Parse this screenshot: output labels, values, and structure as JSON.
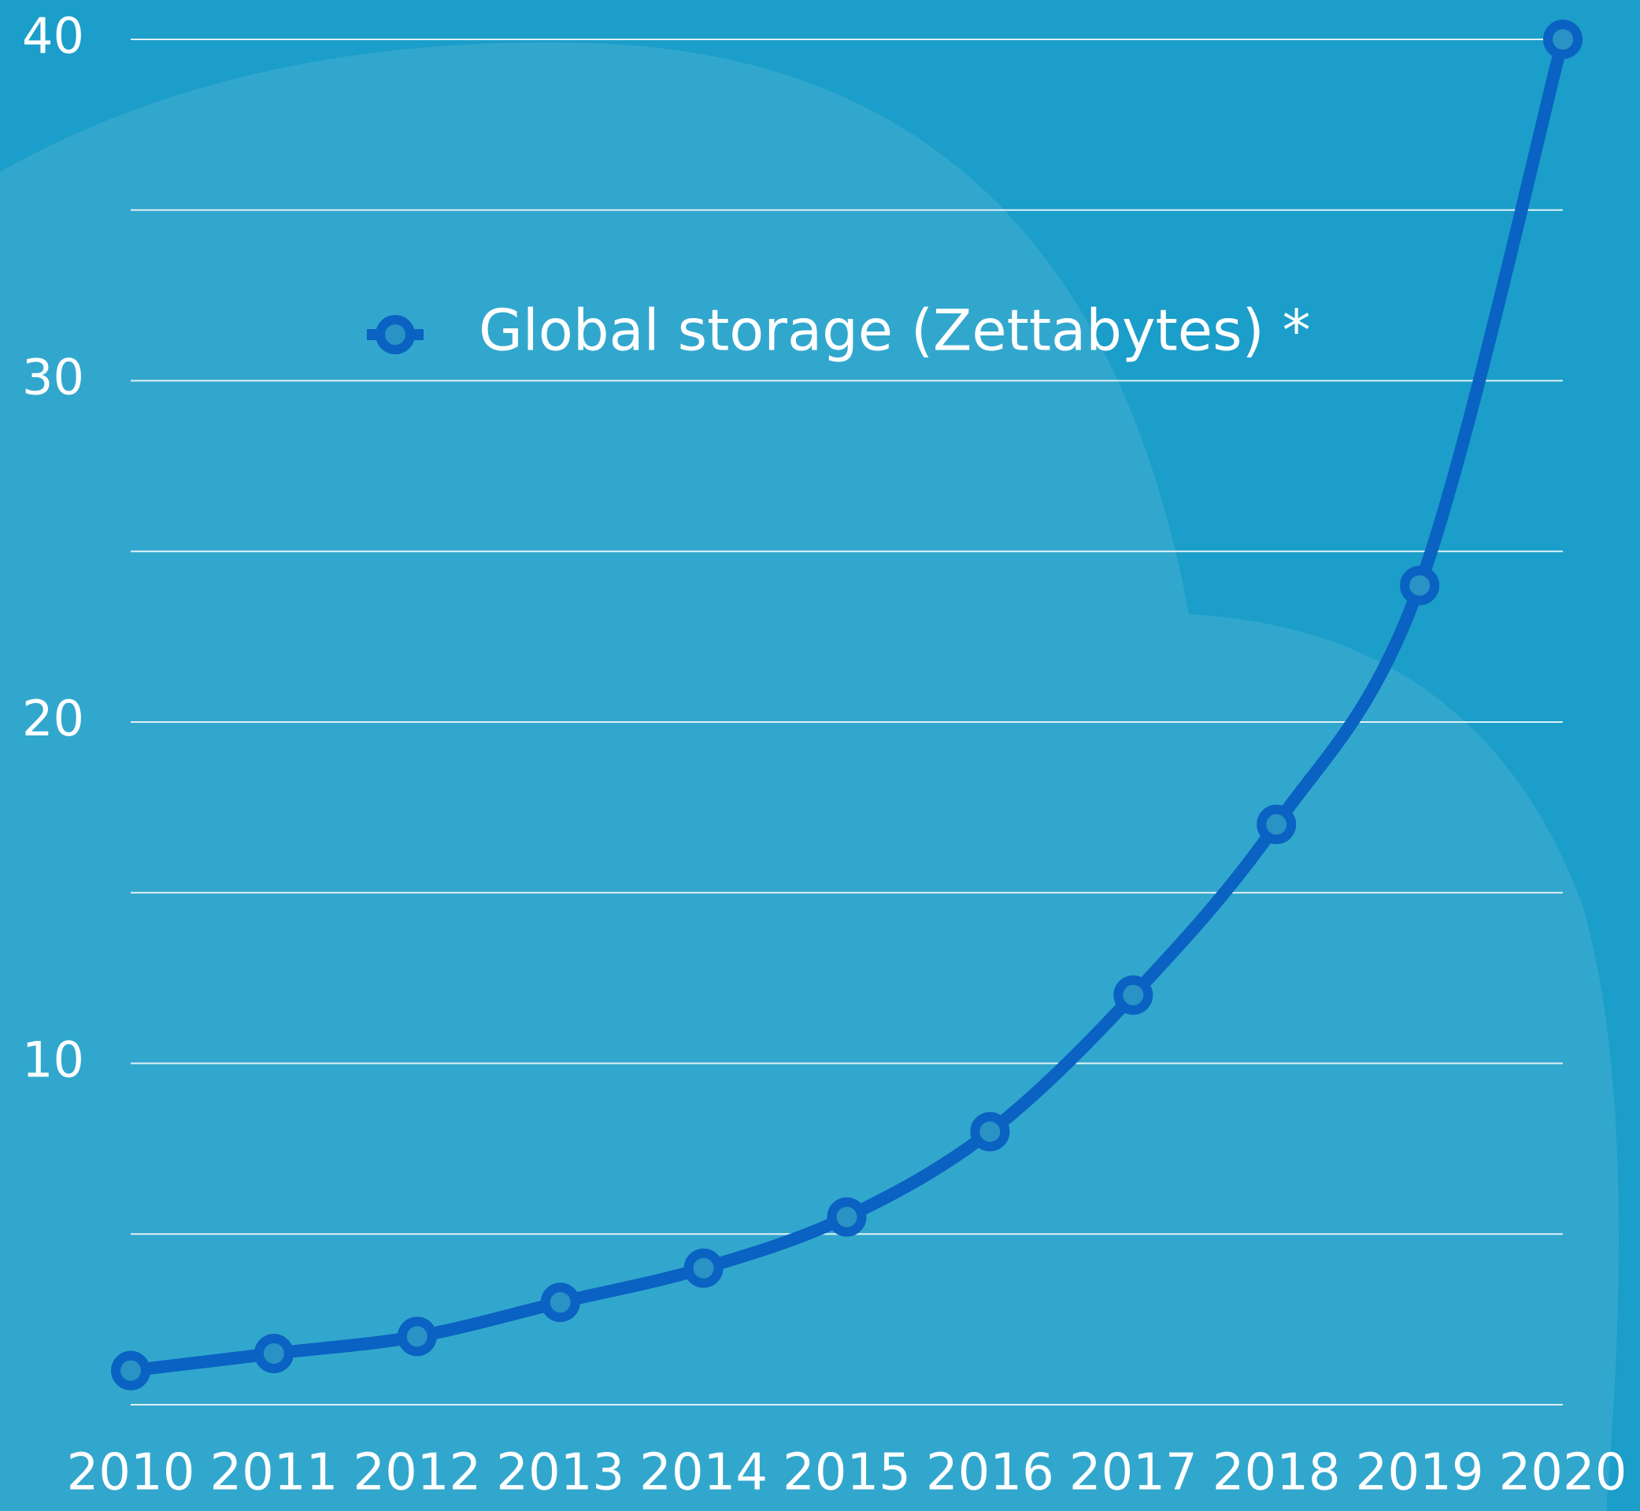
{
  "chart_data": {
    "type": "line",
    "x": [
      2010,
      2011,
      2012,
      2013,
      2014,
      2015,
      2016,
      2017,
      2018,
      2019,
      2020
    ],
    "xlim": [
      2010,
      2020
    ],
    "xticks": [
      2010,
      2011,
      2012,
      2013,
      2014,
      2015,
      2016,
      2017,
      2018,
      2019,
      2020
    ],
    "series": [
      {
        "name": "Global storage (Zettabytes) *",
        "color": "#0a62c2",
        "values": [
          1,
          1.5,
          2,
          3,
          4,
          5.5,
          8,
          12,
          17,
          24,
          40
        ]
      }
    ],
    "ylim": [
      0,
      40
    ],
    "yticks": [
      10,
      20,
      30,
      40
    ],
    "minor_yticks": [
      0,
      5,
      15,
      25,
      35
    ],
    "grid": true,
    "smooth": true
  }
}
